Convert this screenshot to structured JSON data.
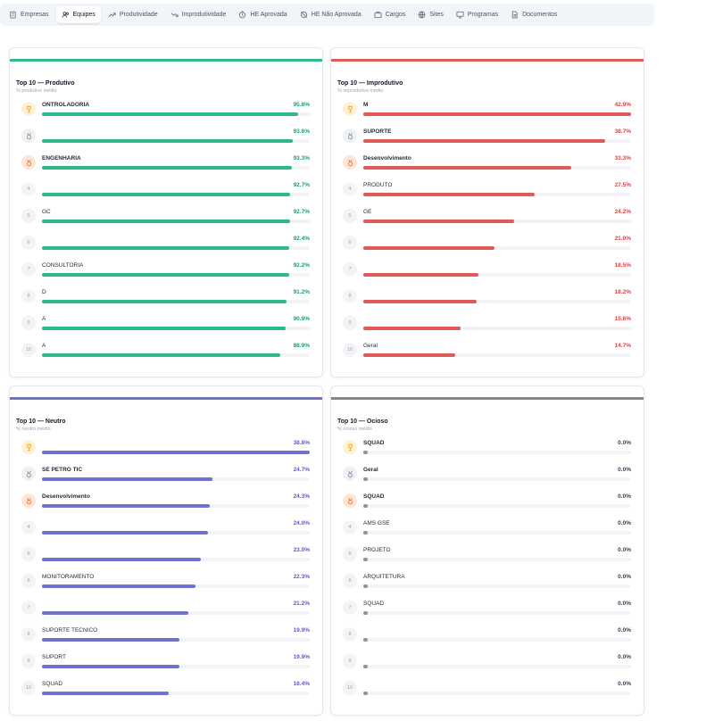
{
  "nav": {
    "tabs": [
      {
        "label": "Empresas",
        "icon": "building-icon",
        "active": false
      },
      {
        "label": "Equipes",
        "icon": "users-icon",
        "active": true
      },
      {
        "label": "Produtividade",
        "icon": "trending-up-icon",
        "active": false
      },
      {
        "label": "Improdutividade",
        "icon": "trending-down-icon",
        "active": false
      },
      {
        "label": "HE Aprovada",
        "icon": "clock-icon",
        "active": false
      },
      {
        "label": "HE Não Aprovada",
        "icon": "clock-off-icon",
        "active": false
      },
      {
        "label": "Cargos",
        "icon": "briefcase-icon",
        "active": false
      },
      {
        "label": "Sites",
        "icon": "globe-icon",
        "active": false
      },
      {
        "label": "Programas",
        "icon": "monitor-icon",
        "active": false
      },
      {
        "label": "Documentos",
        "icon": "document-icon",
        "active": false
      }
    ]
  },
  "panels": {
    "produtivo": {
      "title": "Top 10 — Produtivo",
      "subtitle": "% produtivo médio",
      "color": "#2fb98a",
      "value_color": "#1e9d6b",
      "rows": [
        {
          "rank": "1",
          "name": "ONTROLADORIA",
          "value": "95.8%",
          "pct": 95.8
        },
        {
          "rank": "2",
          "name": "",
          "value": "93.6%",
          "pct": 93.6
        },
        {
          "rank": "3",
          "name": "ENGENHARIA",
          "value": "93.3%",
          "pct": 93.3
        },
        {
          "rank": "4",
          "name": "",
          "value": "92.7%",
          "pct": 92.7
        },
        {
          "rank": "5",
          "name": "GC",
          "value": "92.7%",
          "pct": 92.7
        },
        {
          "rank": "6",
          "name": "",
          "value": "92.4%",
          "pct": 92.4
        },
        {
          "rank": "7",
          "name": "CONSULTORIA",
          "value": "92.2%",
          "pct": 92.2
        },
        {
          "rank": "8",
          "name": "D",
          "value": "91.2%",
          "pct": 91.2
        },
        {
          "rank": "9",
          "name": "A",
          "value": "90.9%",
          "pct": 90.9
        },
        {
          "rank": "10",
          "name": "A",
          "value": "88.9%",
          "pct": 88.9
        }
      ]
    },
    "improdutivo": {
      "title": "Top 10 — Improdutivo",
      "subtitle": "% improdutivo médio",
      "color": "#e05a5a",
      "value_color": "#d64545",
      "rows": [
        {
          "rank": "1",
          "name": "M",
          "value": "42.9%",
          "pct": 42.9
        },
        {
          "rank": "2",
          "name": "SUPORTE",
          "value": "38.7%",
          "pct": 38.7
        },
        {
          "rank": "3",
          "name": "Desenvolvimento",
          "value": "33.3%",
          "pct": 33.3
        },
        {
          "rank": "4",
          "name": "PRODUTO",
          "value": "27.5%",
          "pct": 27.5
        },
        {
          "rank": "5",
          "name": "GE",
          "value": "24.2%",
          "pct": 24.2
        },
        {
          "rank": "6",
          "name": "",
          "value": "21.0%",
          "pct": 21.0
        },
        {
          "rank": "7",
          "name": "",
          "value": "18.5%",
          "pct": 18.5
        },
        {
          "rank": "8",
          "name": "",
          "value": "18.2%",
          "pct": 18.2
        },
        {
          "rank": "9",
          "name": "",
          "value": "15.6%",
          "pct": 15.6
        },
        {
          "rank": "10",
          "name": "Geral",
          "value": "14.7%",
          "pct": 14.7
        }
      ]
    },
    "neutro": {
      "title": "Top 10 — Neutro",
      "subtitle": "% neutro médio",
      "color": "#6e72cc",
      "value_color": "#5a5fc0",
      "rows": [
        {
          "rank": "1",
          "name": "",
          "value": "38.8%",
          "pct": 38.8
        },
        {
          "rank": "2",
          "name": "SE PETRO TIC",
          "value": "24.7%",
          "pct": 24.7
        },
        {
          "rank": "3",
          "name": "Desenvolvimento",
          "value": "24.3%",
          "pct": 24.3
        },
        {
          "rank": "4",
          "name": "",
          "value": "24.0%",
          "pct": 24.0
        },
        {
          "rank": "5",
          "name": "",
          "value": "23.0%",
          "pct": 23.0
        },
        {
          "rank": "6",
          "name": "MONITORAMENTO",
          "value": "22.3%",
          "pct": 22.3
        },
        {
          "rank": "7",
          "name": "",
          "value": "21.2%",
          "pct": 21.2
        },
        {
          "rank": "8",
          "name": "SUPORTE TECNICO",
          "value": "19.9%",
          "pct": 19.9
        },
        {
          "rank": "9",
          "name": "SUPORT",
          "value": "19.9%",
          "pct": 19.9
        },
        {
          "rank": "10",
          "name": "SQUAD",
          "value": "18.4%",
          "pct": 18.4
        }
      ]
    },
    "ocioso": {
      "title": "Top 10 — Ocioso",
      "subtitle": "% ocioso médio",
      "color": "#7d8a8f",
      "value_color": "#374151",
      "rows": [
        {
          "rank": "1",
          "name": "SQUAD",
          "value": "0.0%",
          "pct": 0.0
        },
        {
          "rank": "2",
          "name": "Geral",
          "value": "0.0%",
          "pct": 0.0
        },
        {
          "rank": "3",
          "name": "SQUAD",
          "value": "0.0%",
          "pct": 0.0
        },
        {
          "rank": "4",
          "name": "AMS GSE",
          "value": "0.0%",
          "pct": 0.0
        },
        {
          "rank": "5",
          "name": "PROJETO",
          "value": "0.0%",
          "pct": 0.0
        },
        {
          "rank": "6",
          "name": "ARQUITETURA",
          "value": "0.0%",
          "pct": 0.0
        },
        {
          "rank": "7",
          "name": "SQUAD",
          "value": "0.0%",
          "pct": 0.0
        },
        {
          "rank": "8",
          "name": "",
          "value": "0.0%",
          "pct": 0.0
        },
        {
          "rank": "9",
          "name": "",
          "value": "0.0%",
          "pct": 0.0
        },
        {
          "rank": "10",
          "name": "",
          "value": "0.0%",
          "pct": 0.0
        }
      ]
    }
  }
}
